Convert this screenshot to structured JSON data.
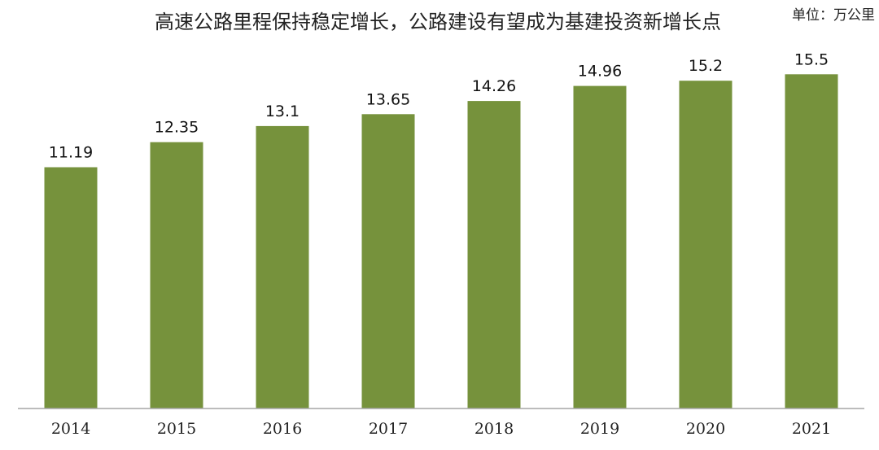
{
  "chart_data": {
    "type": "bar",
    "title": "高速公路里程保持稳定增长，公路建设有望成为基建投资新增长点",
    "unit": "单位：万公里",
    "categories": [
      "2014",
      "2015",
      "2016",
      "2017",
      "2018",
      "2019",
      "2020",
      "2021"
    ],
    "values": [
      11.19,
      12.35,
      13.1,
      13.65,
      14.26,
      14.96,
      15.2,
      15.5
    ],
    "value_labels": [
      "11.19",
      "12.35",
      "13.1",
      "13.65",
      "14.26",
      "14.96",
      "15.2",
      "15.5"
    ],
    "ylim": [
      0,
      16.5
    ],
    "grid": false,
    "legend": "none",
    "bar_color": "#76923c",
    "axis_color": "#a6a6a6"
  }
}
